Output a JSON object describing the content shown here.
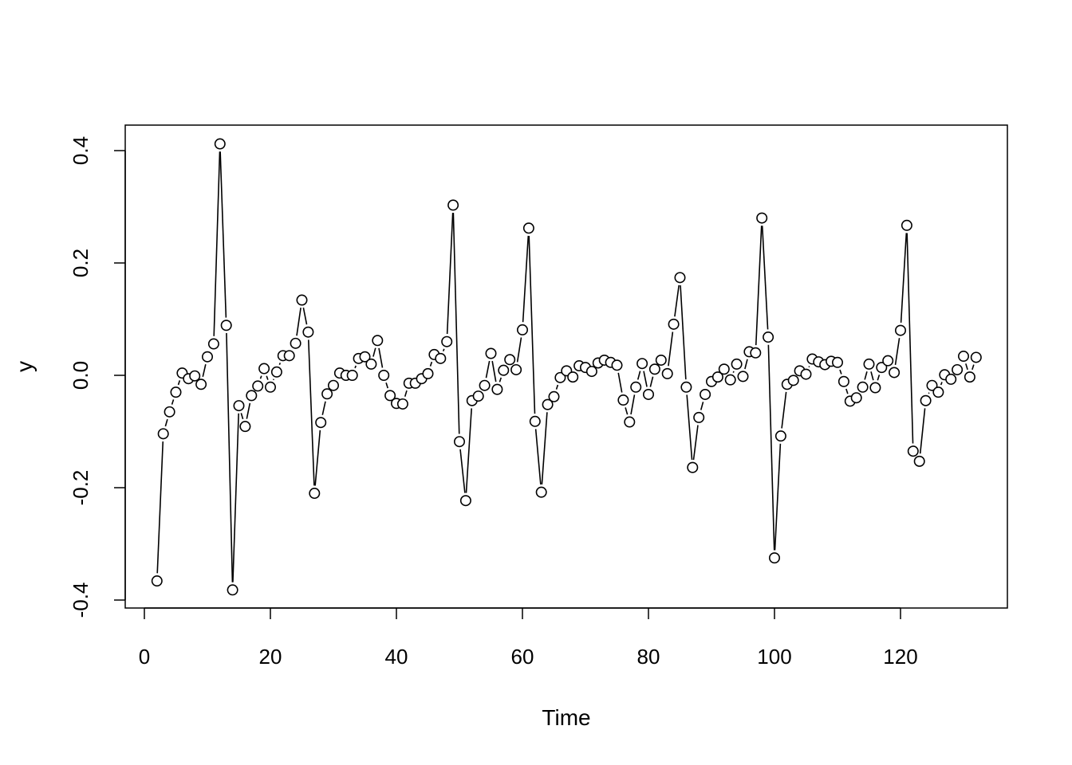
{
  "chart_data": {
    "type": "line",
    "plot_style": "b",
    "title": "",
    "xlabel": "Time",
    "ylabel": "y",
    "xlim": [
      0,
      132
    ],
    "ylim": [
      -0.4,
      0.4
    ],
    "x_ticks": [
      0,
      20,
      40,
      60,
      80,
      100,
      120
    ],
    "y_ticks": [
      -0.4,
      -0.2,
      0.0,
      0.2,
      0.4
    ],
    "x_tick_labels": [
      "0",
      "20",
      "40",
      "60",
      "80",
      "100",
      "120"
    ],
    "y_tick_labels": [
      "-0.4",
      "-0.2",
      "0.0",
      "0.2",
      "0.4"
    ],
    "grid": false,
    "legend": false,
    "series": [
      {
        "x_start": 2,
        "x_step": 1,
        "values": [
          -0.366,
          -0.104,
          -0.065,
          -0.03,
          0.004,
          -0.006,
          -0.001,
          -0.016,
          0.033,
          0.056,
          0.412,
          0.089,
          -0.382,
          -0.054,
          -0.091,
          -0.036,
          -0.019,
          0.012,
          -0.021,
          0.006,
          0.035,
          0.035,
          0.057,
          0.134,
          0.077,
          -0.21,
          -0.084,
          -0.033,
          -0.018,
          0.004,
          0.0,
          0.0,
          0.03,
          0.033,
          0.02,
          0.062,
          0.0,
          -0.036,
          -0.05,
          -0.051,
          -0.014,
          -0.014,
          -0.006,
          0.003,
          0.037,
          0.03,
          0.06,
          0.303,
          -0.118,
          -0.223,
          -0.045,
          -0.037,
          -0.018,
          0.039,
          -0.025,
          0.009,
          0.028,
          0.01,
          0.081,
          0.262,
          -0.082,
          -0.208,
          -0.052,
          -0.038,
          -0.004,
          0.008,
          -0.003,
          0.017,
          0.014,
          0.007,
          0.022,
          0.027,
          0.023,
          0.018,
          -0.044,
          -0.083,
          -0.021,
          0.021,
          -0.034,
          0.011,
          0.027,
          0.003,
          0.091,
          0.174,
          -0.021,
          -0.164,
          -0.075,
          -0.034,
          -0.011,
          -0.003,
          0.011,
          -0.008,
          0.02,
          -0.002,
          0.042,
          0.04,
          0.28,
          0.068,
          -0.325,
          -0.108,
          -0.016,
          -0.009,
          0.008,
          0.002,
          0.029,
          0.024,
          0.019,
          0.025,
          0.023,
          -0.011,
          -0.046,
          -0.04,
          -0.021,
          0.02,
          -0.022,
          0.014,
          0.026,
          0.005,
          0.08,
          0.267,
          -0.135,
          -0.153,
          -0.045,
          -0.018,
          -0.03,
          0.001,
          -0.007,
          0.01,
          0.034,
          -0.003,
          0.032
        ]
      }
    ],
    "colors": {
      "line": "#000000",
      "marker_edge": "#000000",
      "marker_fill": "#ffffff",
      "frame": "#000000"
    }
  }
}
